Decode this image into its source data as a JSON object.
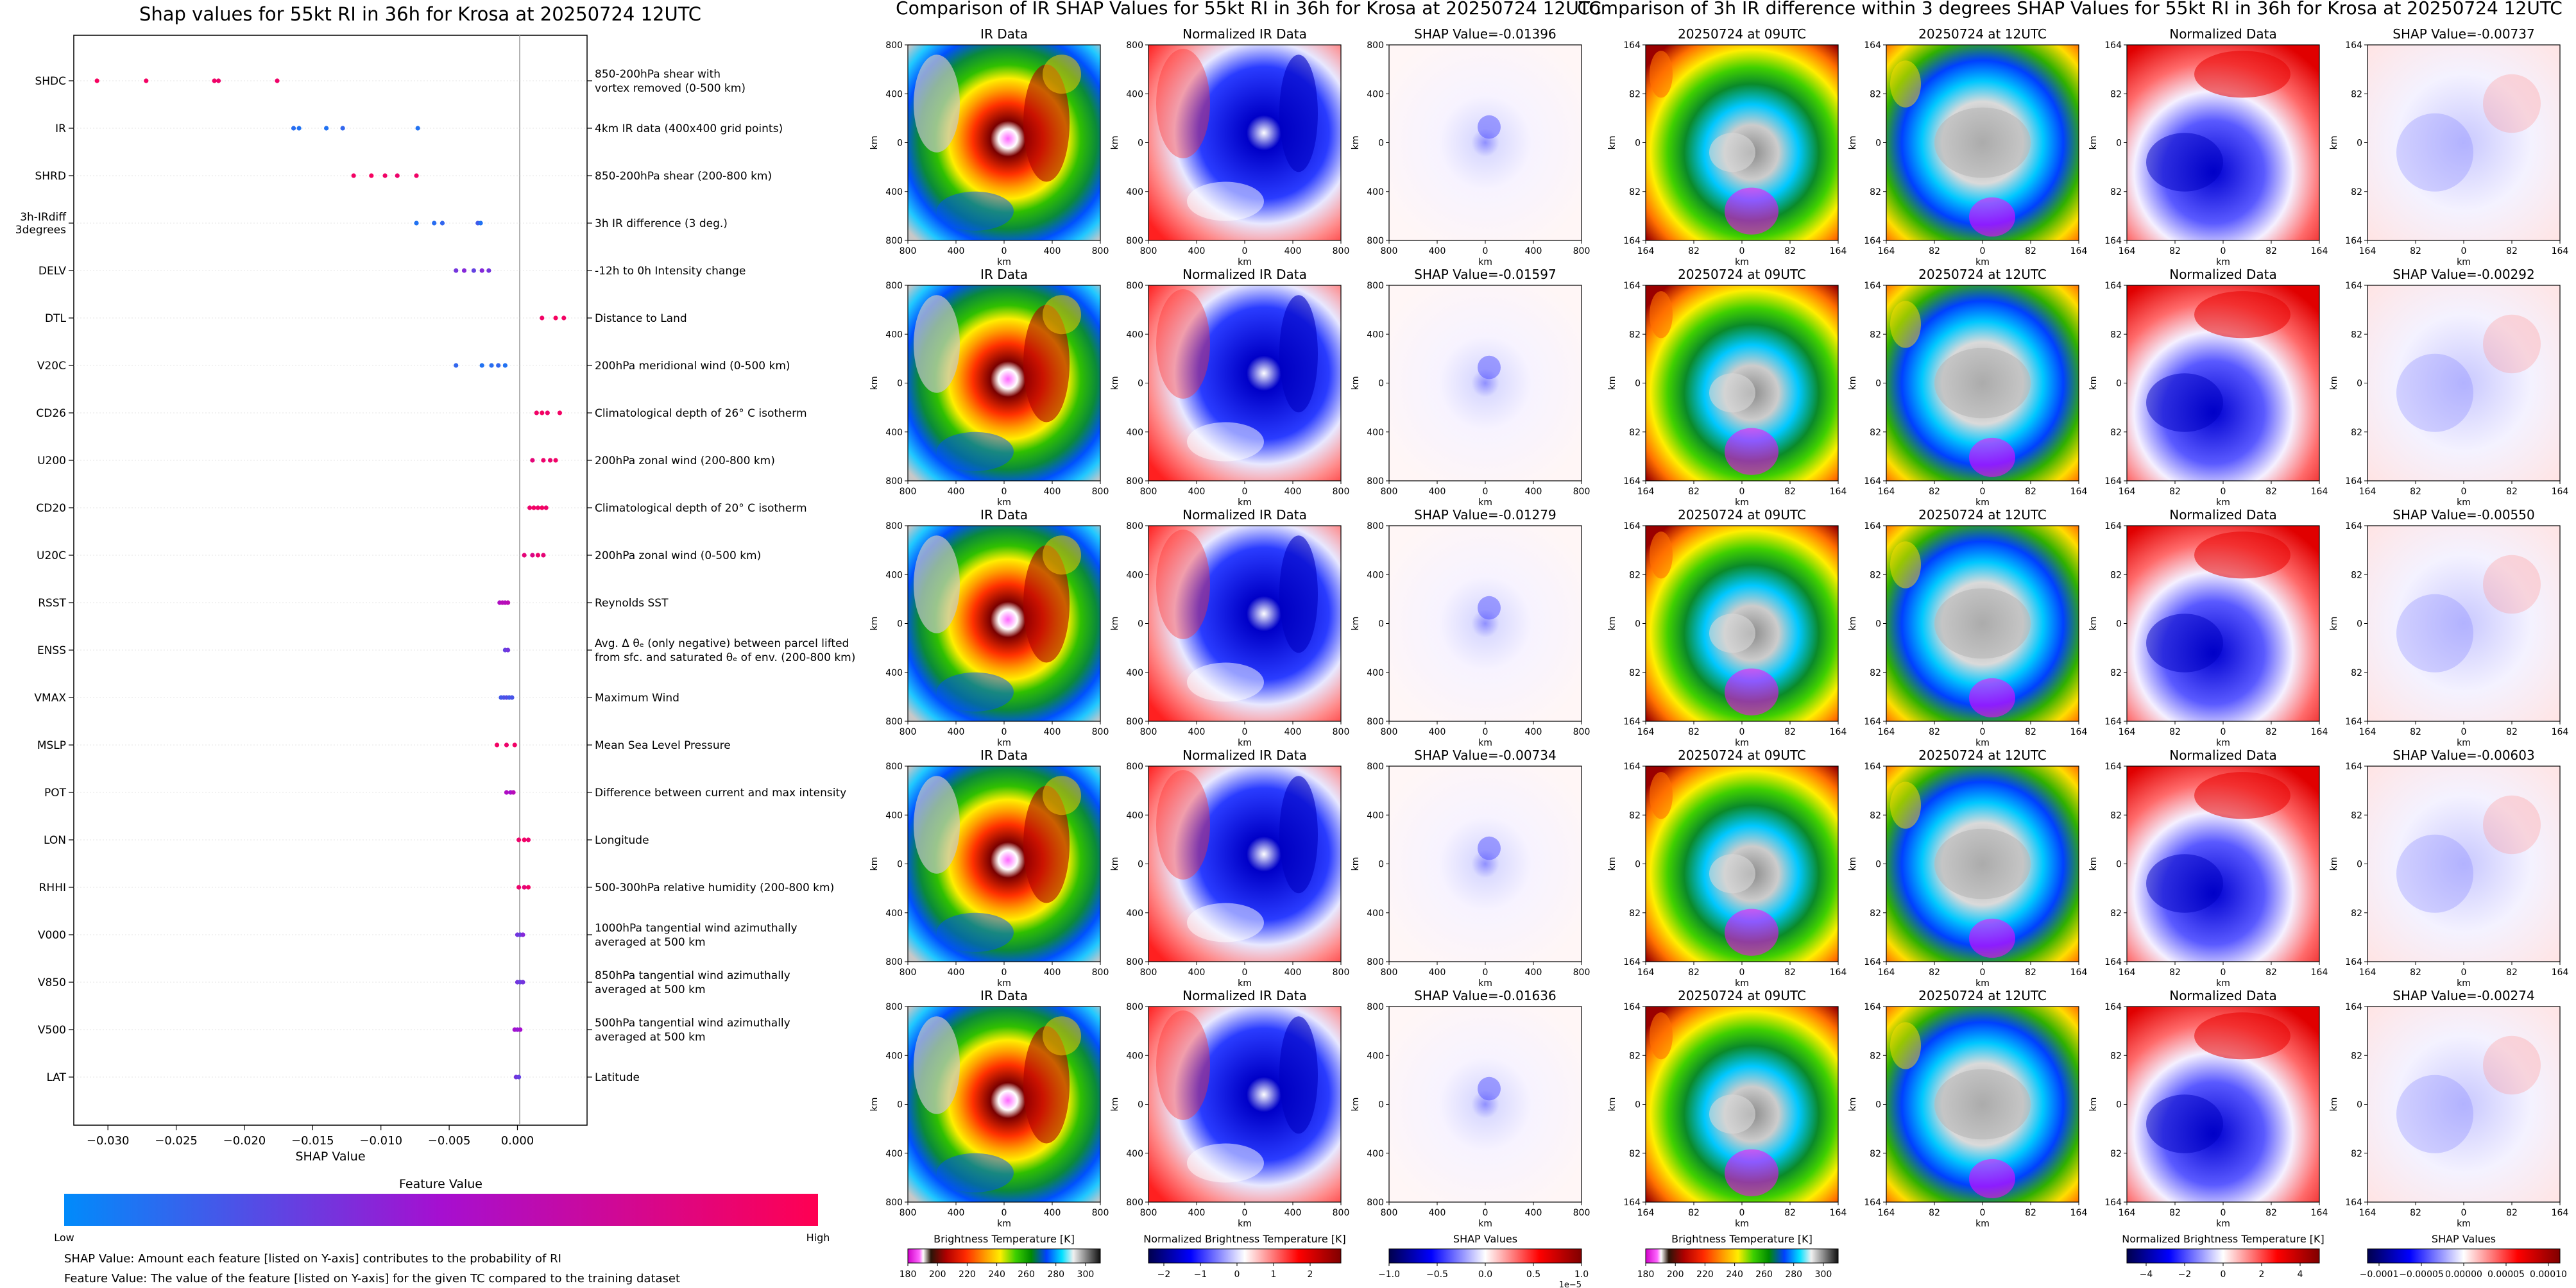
{
  "left_panel": {
    "title": "Shap values for 55kt RI in 36h for Krosa at 20250724 12UTC",
    "xlabel": "SHAP Value",
    "colorbar_title": "Feature Value",
    "colorbar_low": "Low",
    "colorbar_high": "High",
    "note_1": "SHAP Value: Amount each feature [listed on Y-axis] contributes to the probability of RI",
    "note_2": "Feature Value: The value of the feature [listed on Y-axis] for the given TC compared to the training dataset"
  },
  "ir_panel": {
    "title": "Comparison of IR SHAP Values for 55kt RI in 36h for Krosa at 20250724 12UTC",
    "col_titles": [
      "IR Data",
      "Normalized IR Data"
    ],
    "shap_titles": [
      "SHAP Value=-0.01396",
      "SHAP Value=-0.01597",
      "SHAP Value=-0.01279",
      "SHAP Value=-0.00734",
      "SHAP Value=-0.01636"
    ],
    "axis_label": "km",
    "x_ticks": [
      "800",
      "400",
      "0",
      "400",
      "800"
    ],
    "y_ticks": [
      "800",
      "400",
      "0",
      "400",
      "800"
    ],
    "cbar_labels": [
      "Brightness Temperature [K]",
      "Normalized Brightness Temperature [K]",
      "SHAP Values"
    ],
    "cbar1_ticks": [
      "180",
      "200",
      "220",
      "240",
      "260",
      "280",
      "300"
    ],
    "cbar2_ticks": [
      "−2",
      "−1",
      "0",
      "1",
      "2"
    ],
    "cbar3_ticks": [
      "−1.0",
      "−0.5",
      "0.0",
      "0.5",
      "1.0"
    ],
    "cbar3_offset": "1e−5"
  },
  "diff_panel": {
    "title": "Comparison of 3h IR difference within 3 degrees SHAP Values for 55kt RI in 36h for Krosa at 20250724 12UTC",
    "col_titles": [
      "20250724 at 09UTC",
      "20250724 at 12UTC",
      "Normalized Data"
    ],
    "shap_titles": [
      "SHAP Value=-0.00737",
      "SHAP Value=-0.00292",
      "SHAP Value=-0.00550",
      "SHAP Value=-0.00603",
      "SHAP Value=-0.00274"
    ],
    "axis_label": "km",
    "x_ticks": [
      "164",
      "82",
      "0",
      "82",
      "164"
    ],
    "y_ticks": [
      "164",
      "82",
      "0",
      "82",
      "164"
    ],
    "cbar_labels": [
      "Brightness Temperature [K]",
      "Normalized Brightness Temperature [K]",
      "SHAP Values"
    ],
    "cbar1_ticks": [
      "180",
      "200",
      "220",
      "240",
      "260",
      "280",
      "300"
    ],
    "cbar2_ticks": [
      "−4",
      "−2",
      "0",
      "2",
      "4"
    ],
    "cbar3_ticks": [
      "−0.0001",
      "−0.00005",
      "0.00000",
      "0.00005",
      "0.00010"
    ]
  },
  "colors": {
    "low": "#008bfb",
    "mid": "#a60fd0",
    "high": "#ff0052"
  },
  "chart_data": {
    "type": "scatter",
    "title": "Shap values for 55kt RI in 36h for Krosa at 20250724 12UTC",
    "xlabel": "SHAP Value",
    "xlim": [
      -0.0325,
      0.0051
    ],
    "x_ticks": [
      -0.03,
      -0.025,
      -0.02,
      -0.015,
      -0.01,
      -0.005,
      0.0
    ],
    "x_tick_labels": [
      "−0.030",
      "−0.025",
      "−0.020",
      "−0.015",
      "−0.010",
      "−0.005",
      "0.000"
    ],
    "features": [
      {
        "code": "SHDC",
        "desc": [
          "850-200hPa shear with",
          "vortex removed (0-500 km)"
        ],
        "shap": [
          -0.0308,
          -0.0272,
          -0.0222,
          -0.0219,
          -0.0176
        ],
        "feat": [
          0.95,
          0.93,
          0.92,
          0.9,
          0.91
        ]
      },
      {
        "code": "IR",
        "desc": [
          "4km IR data (400x400 grid points)"
        ],
        "shap": [
          -0.0164,
          -0.016,
          -0.014,
          -0.0128,
          -0.0073
        ],
        "feat": [
          0.12,
          0.1,
          0.1,
          0.15,
          0.1
        ]
      },
      {
        "code": "SHRD",
        "desc": [
          "850-200hPa shear (200-800 km)"
        ],
        "shap": [
          -0.012,
          -0.0107,
          -0.0097,
          -0.0088,
          -0.0074
        ],
        "feat": [
          0.93,
          0.95,
          0.92,
          0.9,
          0.92
        ]
      },
      {
        "code": "3h-IRdiff\n3degrees",
        "desc": [
          "3h IR difference (3 deg.)"
        ],
        "shap": [
          -0.0074,
          -0.0061,
          -0.0055,
          -0.0029,
          -0.0027
        ],
        "feat": [
          0.1,
          0.12,
          0.15,
          0.2,
          0.1
        ]
      },
      {
        "code": "DELV",
        "desc": [
          "-12h to 0h Intensity change"
        ],
        "shap": [
          -0.0045,
          -0.0039,
          -0.0032,
          -0.0026,
          -0.0021
        ],
        "feat": [
          0.35,
          0.4,
          0.3,
          0.4,
          0.35
        ]
      },
      {
        "code": "DTL",
        "desc": [
          "Distance to Land"
        ],
        "shap": [
          0.0018,
          0.0028,
          0.0034
        ],
        "feat": [
          0.92,
          0.95,
          0.93
        ]
      },
      {
        "code": "V20C",
        "desc": [
          "200hPa meridional wind (0-500 km)"
        ],
        "shap": [
          -0.0045,
          -0.0026,
          -0.0019,
          -0.0014,
          -0.0009
        ],
        "feat": [
          0.15,
          0.1,
          0.12,
          0.15,
          0.1
        ]
      },
      {
        "code": "CD26",
        "desc": [
          "Climatological depth of 26° C isotherm"
        ],
        "shap": [
          0.0014,
          0.0018,
          0.0022,
          0.0031
        ],
        "feat": [
          0.92,
          0.94,
          0.9,
          0.93
        ]
      },
      {
        "code": "U200",
        "desc": [
          "200hPa zonal wind (200-800 km)"
        ],
        "shap": [
          0.0011,
          0.0019,
          0.0024,
          0.0028
        ],
        "feat": [
          0.85,
          0.9,
          0.88,
          0.92
        ]
      },
      {
        "code": "CD20",
        "desc": [
          "Climatological depth of 20° C isotherm"
        ],
        "shap": [
          0.0009,
          0.0012,
          0.0015,
          0.0018,
          0.0021
        ],
        "feat": [
          0.9,
          0.93,
          0.91,
          0.94,
          0.9
        ]
      },
      {
        "code": "U20C",
        "desc": [
          "200hPa zonal wind (0-500 km)"
        ],
        "shap": [
          0.0005,
          0.0011,
          0.0015,
          0.0019
        ],
        "feat": [
          0.85,
          0.8,
          0.9,
          0.86
        ]
      },
      {
        "code": "RSST",
        "desc": [
          "Reynolds SST"
        ],
        "shap": [
          -0.0013,
          -0.0011,
          -0.0009,
          -0.0007
        ],
        "feat": [
          0.55,
          0.6,
          0.58,
          0.62
        ]
      },
      {
        "code": "ENSS",
        "desc": [
          "Avg. Δ θₑ (only negative) between parcel lifted",
          "from sfc. and saturated θₑ of env. (200-800 km)"
        ],
        "shap": [
          -0.0009,
          -0.0007
        ],
        "feat": [
          0.3,
          0.35
        ]
      },
      {
        "code": "VMAX",
        "desc": [
          "Maximum Wind"
        ],
        "shap": [
          -0.0012,
          -0.001,
          -0.0008,
          -0.0006,
          -0.0004
        ],
        "feat": [
          0.2,
          0.22,
          0.25,
          0.2,
          0.22
        ]
      },
      {
        "code": "MSLP",
        "desc": [
          "Mean Sea Level Pressure"
        ],
        "shap": [
          -0.0015,
          -0.0008,
          -0.0002
        ],
        "feat": [
          0.93,
          0.9,
          0.92
        ]
      },
      {
        "code": "POT",
        "desc": [
          "Difference between current and max intensity"
        ],
        "shap": [
          -0.0008,
          -0.0005,
          -0.0003
        ],
        "feat": [
          0.55,
          0.5,
          0.6
        ]
      },
      {
        "code": "LON",
        "desc": [
          "Longitude"
        ],
        "shap": [
          0.0001,
          0.0005,
          0.0008
        ],
        "feat": [
          0.9,
          0.93,
          0.88
        ]
      },
      {
        "code": "RHHI",
        "desc": [
          "500-300hPa relative humidity (200-800 km)"
        ],
        "shap": [
          0.0001,
          0.0005,
          0.0008
        ],
        "feat": [
          0.9,
          0.85,
          0.93
        ]
      },
      {
        "code": "V000",
        "desc": [
          "1000hPa tangential wind azimuthally",
          "averaged at 500 km"
        ],
        "shap": [
          0.0,
          0.0002,
          0.0004
        ],
        "feat": [
          0.35,
          0.3,
          0.4
        ]
      },
      {
        "code": "V850",
        "desc": [
          "850hPa tangential wind azimuthally",
          "averaged at 500 km"
        ],
        "shap": [
          0.0,
          0.0002,
          0.0004
        ],
        "feat": [
          0.35,
          0.3,
          0.35
        ]
      },
      {
        "code": "V500",
        "desc": [
          "500hPa tangential wind azimuthally",
          "averaged at 500 km"
        ],
        "shap": [
          -0.0002,
          0.0,
          0.0002
        ],
        "feat": [
          0.5,
          0.45,
          0.5
        ]
      },
      {
        "code": "LAT",
        "desc": [
          "Latitude"
        ],
        "shap": [
          -0.0001,
          0.0001
        ],
        "feat": [
          0.35,
          0.3
        ]
      }
    ]
  }
}
